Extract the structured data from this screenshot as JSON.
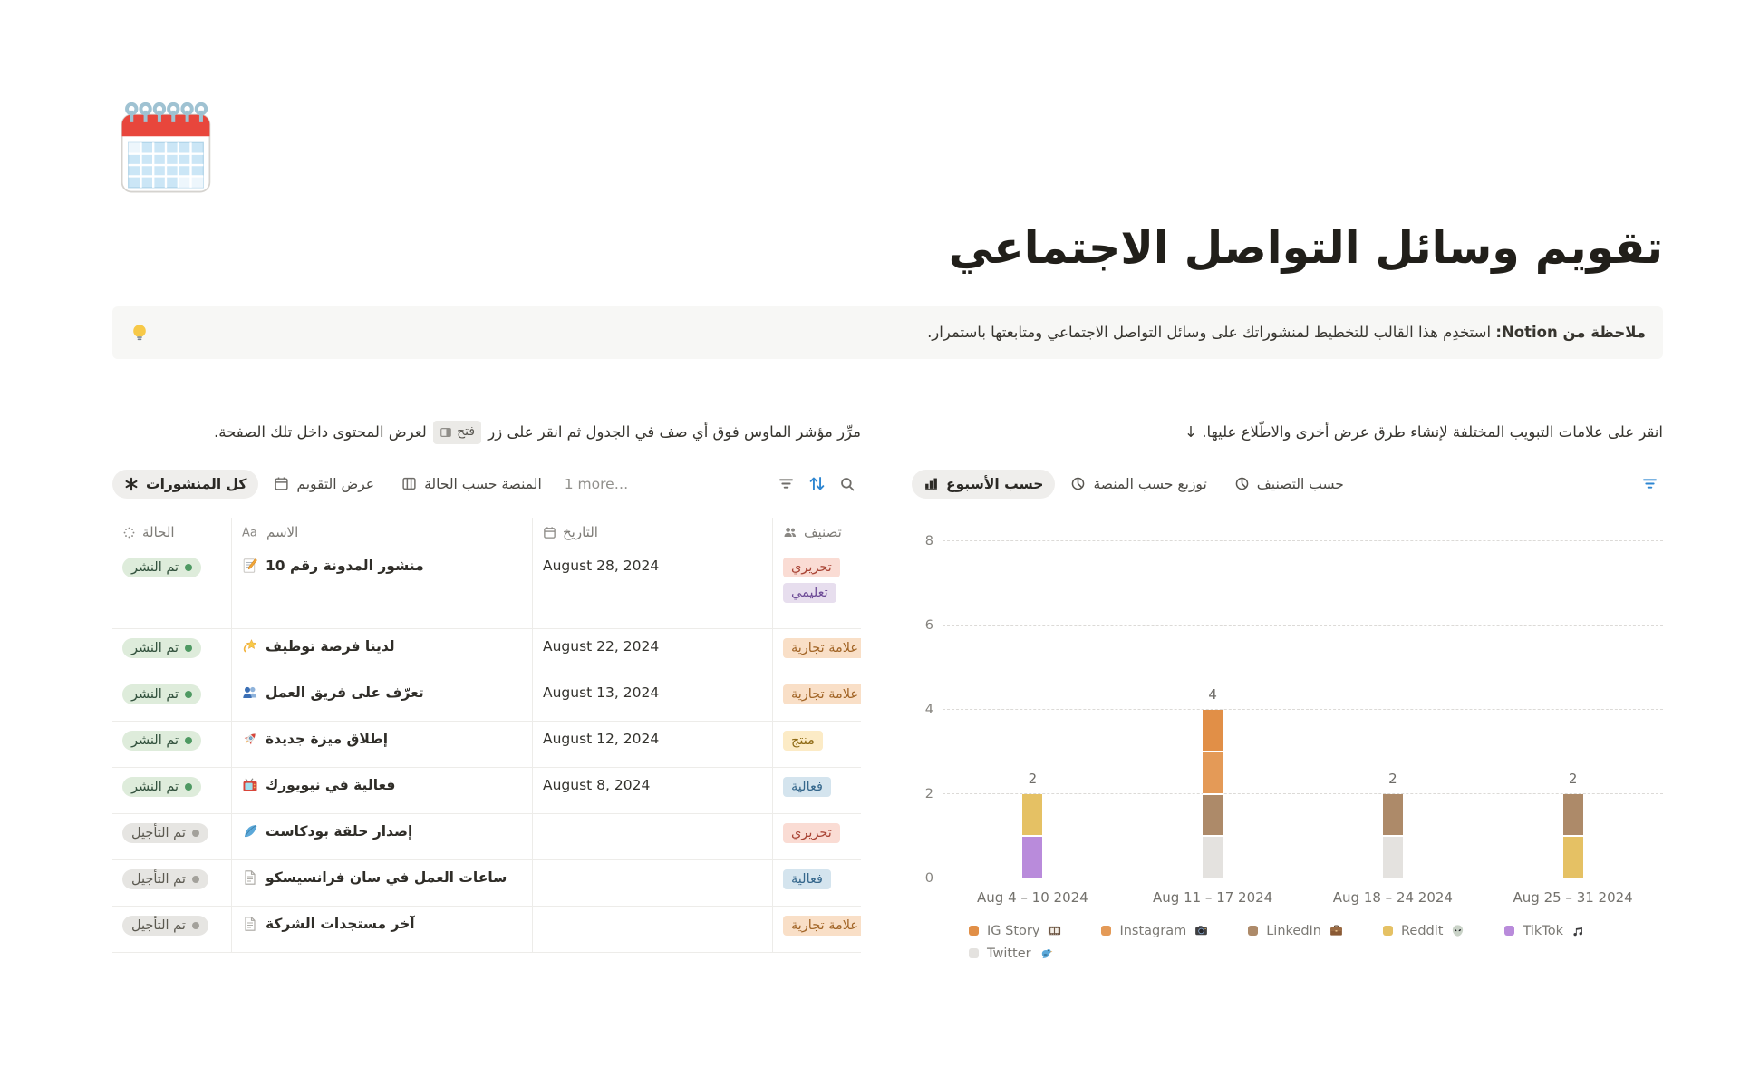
{
  "page": {
    "icon": "spiral-calendar",
    "title": "تقويم وسائل التواصل الاجتماعي",
    "callout": {
      "icon": "light-bulb",
      "bold": "ملاحظة من Notion:",
      "text": " استخدِم هذا القالب للتخطيط لمنشوراتك على وسائل التواصل الاجتماعي ومتابعتها باستمرار."
    }
  },
  "table_section": {
    "hint_before": "مرِّر مؤشر الماوس فوق أي صف في الجدول ثم انقر على زر",
    "open_label": "فتح",
    "hint_after": "لعرض المحتوى داخل تلك الصفحة.",
    "tabs": [
      {
        "label": "كل المنشورات",
        "icon": "asterisk",
        "active": true
      },
      {
        "label": "عرض التقويم",
        "icon": "calendar",
        "active": false
      },
      {
        "label": "المنصة حسب الحالة",
        "icon": "board",
        "active": false
      }
    ],
    "more_label": "1 more…",
    "toolbar_icons": [
      "filter",
      "sort",
      "search"
    ],
    "columns": [
      {
        "label": "الحالة",
        "icon": "status"
      },
      {
        "label": "الاسم",
        "icon": "aa"
      },
      {
        "label": "التاريخ",
        "icon": "date"
      },
      {
        "label": "تصنيف",
        "icon": "people-gray"
      }
    ],
    "rows": [
      {
        "status": "تم النشر",
        "status_color": "green",
        "icon": "memo",
        "name": "منشور المدونة رقم 10",
        "date": "August 28, 2024",
        "tags": [
          {
            "label": "تحريري",
            "color": "red"
          },
          {
            "label": "تعليمي",
            "color": "purple"
          }
        ]
      },
      {
        "status": "تم النشر",
        "status_color": "green",
        "icon": "dizzy",
        "name": "لدينا فرصة توظيف",
        "date": "August 22, 2024",
        "tags": [
          {
            "label": "علامة تجارية",
            "color": "orange"
          }
        ]
      },
      {
        "status": "تم النشر",
        "status_color": "green",
        "icon": "people-blue",
        "name": "تعرّف على فريق العمل",
        "date": "August 13, 2024",
        "tags": [
          {
            "label": "علامة تجارية",
            "color": "orange"
          }
        ]
      },
      {
        "status": "تم النشر",
        "status_color": "green",
        "icon": "rocket",
        "name": "إطلاق ميزة جديدة",
        "date": "August 12, 2024",
        "tags": [
          {
            "label": "منتج",
            "color": "yellow"
          }
        ]
      },
      {
        "status": "تم النشر",
        "status_color": "green",
        "icon": "tv",
        "name": "فعالية في نيويورك",
        "date": "August 8, 2024",
        "tags": [
          {
            "label": "فعالية",
            "color": "blue"
          }
        ]
      },
      {
        "status": "تم التأجيل",
        "status_color": "gray",
        "icon": "feather",
        "name": "إصدار حلقة بودكاست",
        "date": "",
        "tags": [
          {
            "label": "تحريري",
            "color": "red"
          }
        ]
      },
      {
        "status": "تم التأجيل",
        "status_color": "gray",
        "icon": "page",
        "name": "ساعات العمل في سان فرانسيسكو",
        "date": "",
        "tags": [
          {
            "label": "فعالية",
            "color": "blue"
          }
        ]
      },
      {
        "status": "تم التأجيل",
        "status_color": "gray",
        "icon": "page",
        "name": "آخر مستجدات الشركة",
        "date": "",
        "tags": [
          {
            "label": "علامة تجارية",
            "color": "orange"
          }
        ]
      }
    ]
  },
  "chart_section": {
    "hint": "انقر على علامات التبويب المختلفة لإنشاء طرق عرض أخرى والاطّلاع عليها. ↓",
    "tabs": [
      {
        "label": "حسب الأسبوع",
        "icon": "bar-chart",
        "active": true
      },
      {
        "label": "توزيع حسب المنصة",
        "icon": "pie-chart",
        "active": false
      },
      {
        "label": "حسب التصنيف",
        "icon": "pie-chart",
        "active": false
      }
    ],
    "toolbar_icons": [
      "filter-blue"
    ]
  },
  "chart_data": {
    "type": "bar",
    "stacked": true,
    "categories": [
      "Aug 4 – 10 2024",
      "Aug 11 – 17 2024",
      "Aug 18 – 24 2024",
      "Aug 25 – 31 2024"
    ],
    "series": [
      {
        "name": "Twitter",
        "emoji_icon": "bird",
        "color": "#E4E2DF",
        "values": [
          0,
          1,
          1,
          0
        ]
      },
      {
        "name": "TikTok",
        "emoji_icon": "music",
        "color": "#B98BDB",
        "values": [
          1,
          0,
          0,
          0
        ]
      },
      {
        "name": "Reddit",
        "emoji_icon": "alien",
        "color": "#E5C164",
        "values": [
          1,
          0,
          0,
          1
        ]
      },
      {
        "name": "LinkedIn",
        "emoji_icon": "briefcase",
        "color": "#AD8A69",
        "values": [
          0,
          1,
          1,
          1
        ]
      },
      {
        "name": "Instagram",
        "emoji_icon": "camera",
        "color": "#E49A57",
        "values": [
          0,
          1,
          0,
          0
        ]
      },
      {
        "name": "IG Story",
        "emoji_icon": "film",
        "color": "#E18F47",
        "values": [
          0,
          1,
          0,
          0
        ]
      }
    ],
    "totals": [
      2,
      4,
      2,
      2
    ],
    "legend_order": [
      "IG Story",
      "Instagram",
      "LinkedIn",
      "Reddit",
      "TikTok",
      "Twitter"
    ],
    "ylim": [
      0,
      8
    ],
    "yticks": [
      0,
      2,
      4,
      6,
      8
    ],
    "xlabel": "",
    "ylabel": "",
    "legend_position": "bottom",
    "grid": "dotted-horizontal"
  }
}
